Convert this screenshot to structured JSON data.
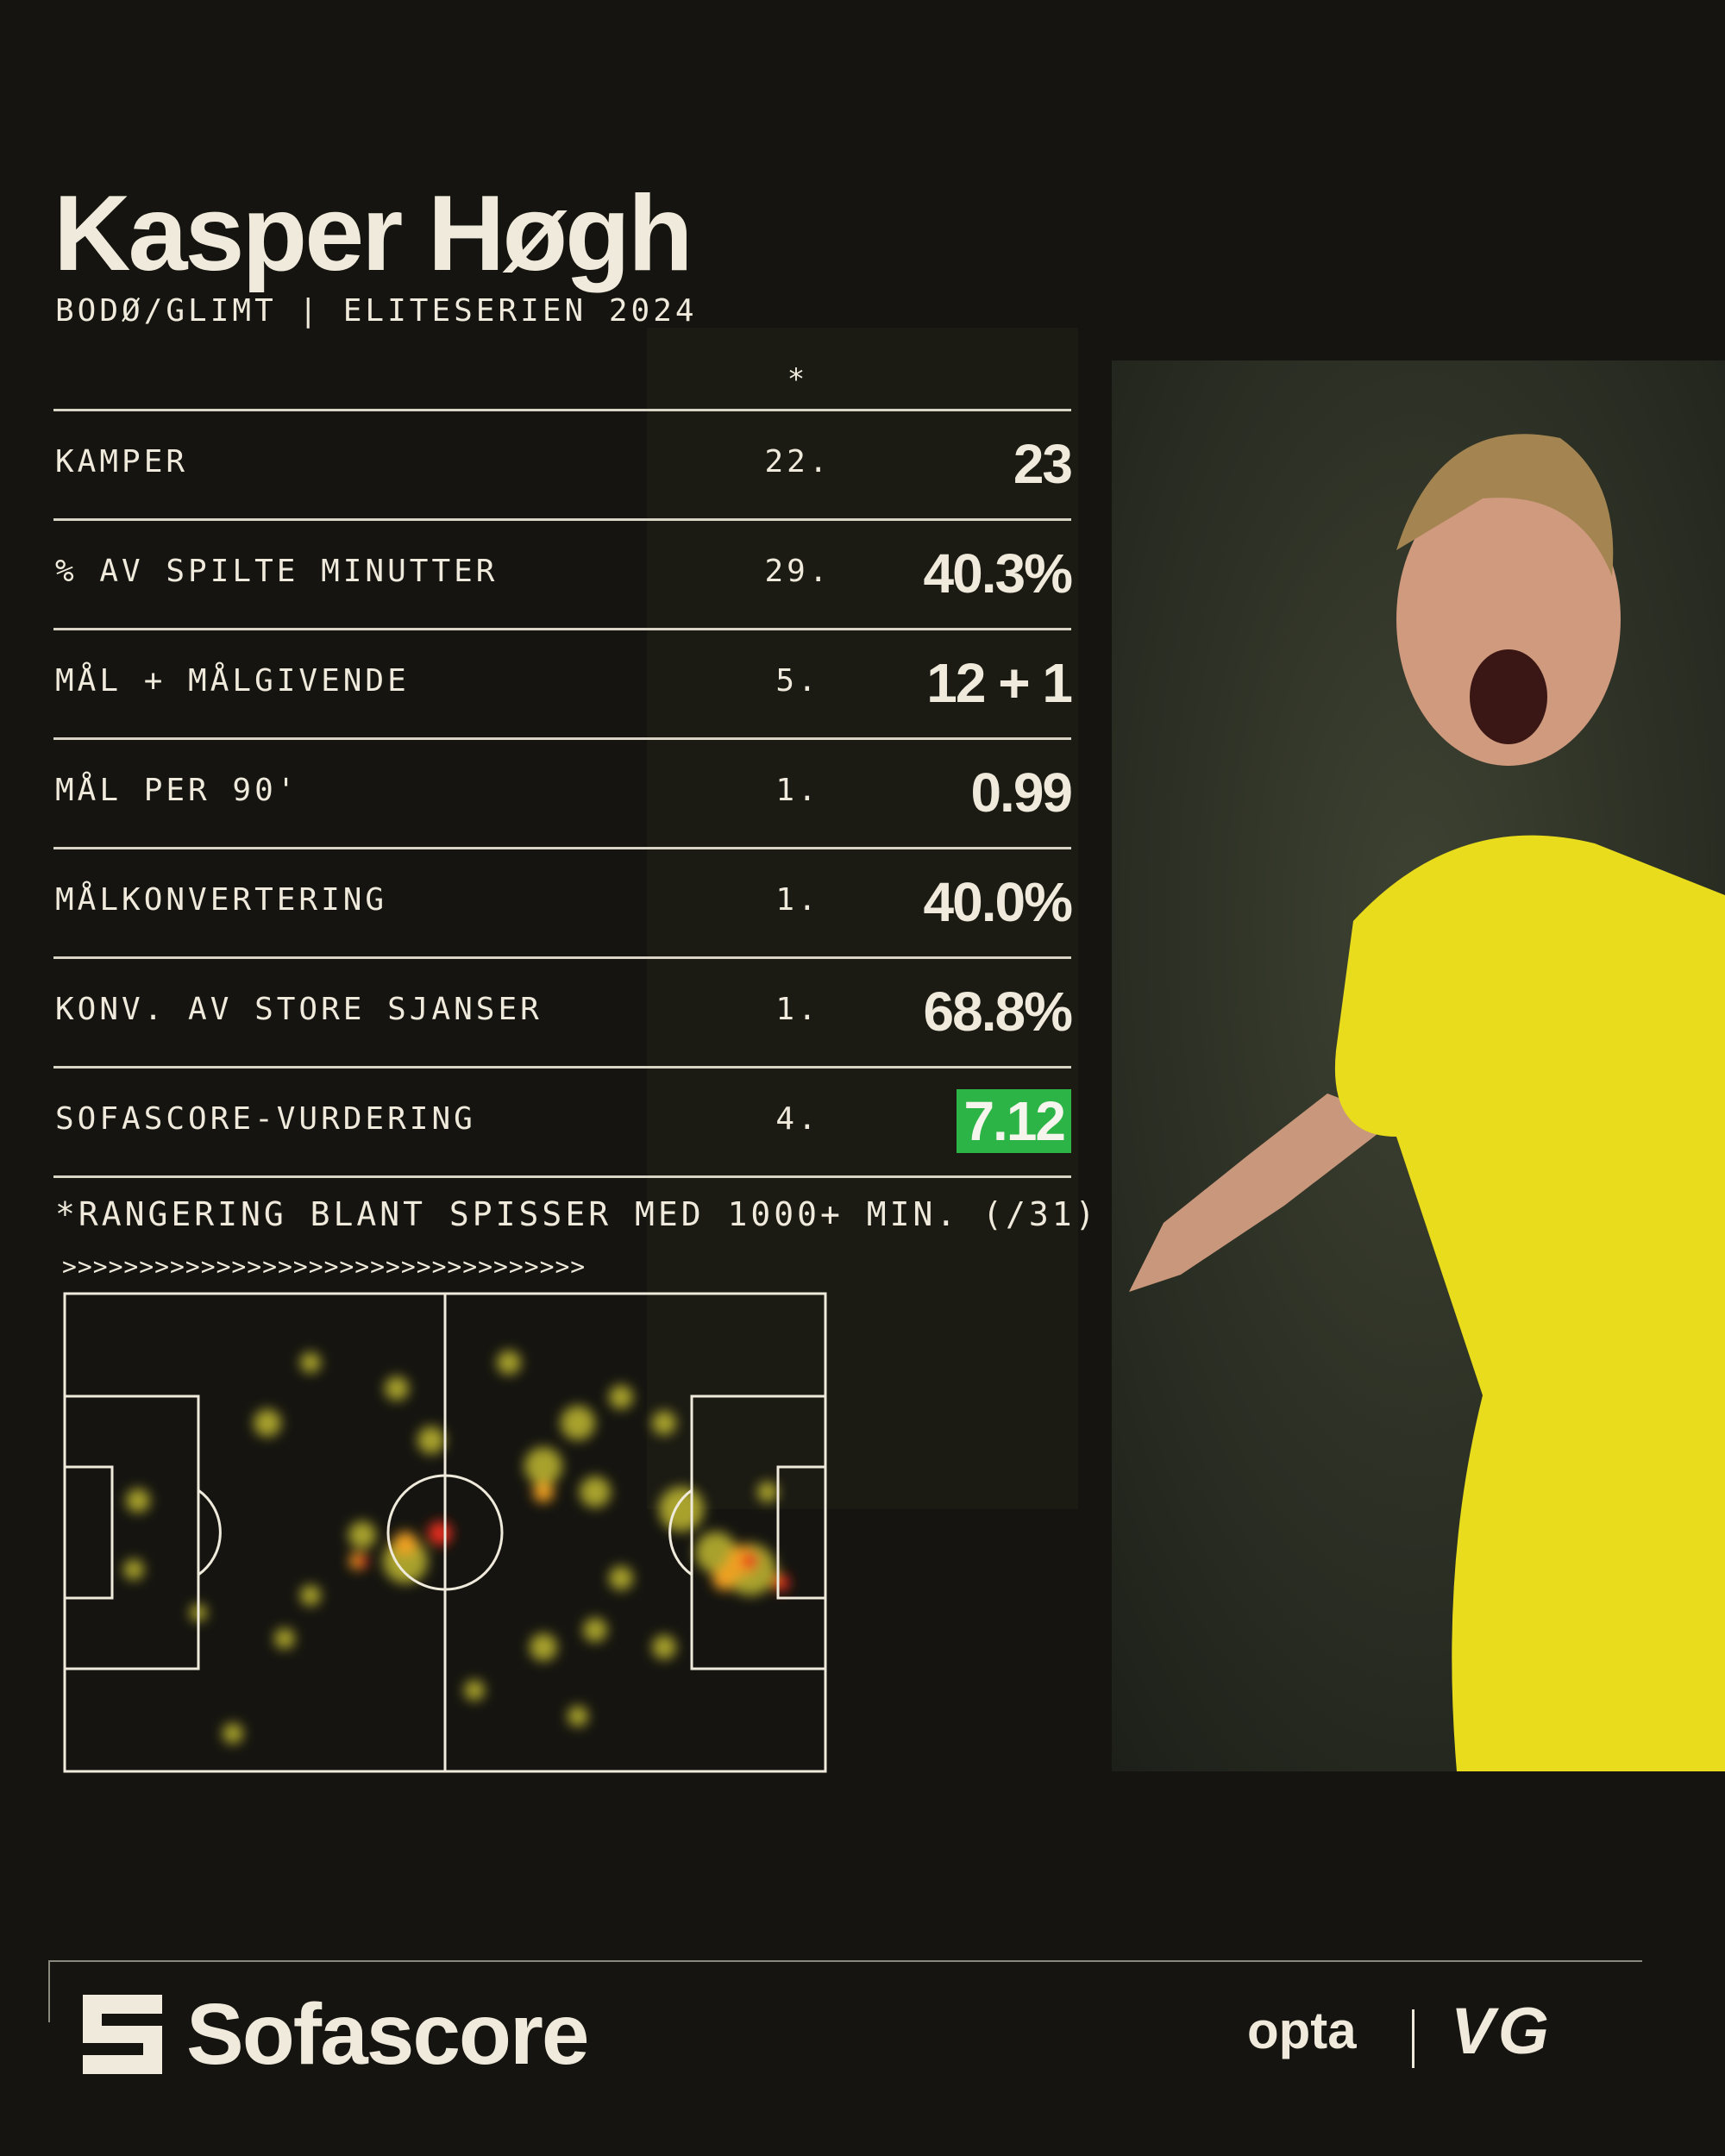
{
  "header": {
    "title": "Kasper Høgh",
    "subtitle": "BODØ/GLIMT | ELITESERIEN 2024"
  },
  "table": {
    "rank_header": "*",
    "rows": [
      {
        "label": "KAMPER",
        "rank": "22.",
        "value": "23"
      },
      {
        "label": "% AV SPILTE MINUTTER",
        "rank": "29.",
        "value": "40.3%"
      },
      {
        "label": "MÅL + MÅLGIVENDE",
        "rank": "5.",
        "value": "12 + 1"
      },
      {
        "label": "MÅL PER 90'",
        "rank": "1.",
        "value": "0.99"
      },
      {
        "label": "MÅLKONVERTERING",
        "rank": "1.",
        "value": "40.0%"
      },
      {
        "label": "KONV. AV STORE SJANSER",
        "rank": "1.",
        "value": "68.8%"
      },
      {
        "label": "SOFASCORE-VURDERING",
        "rank": "4.",
        "value": "7.12",
        "highlight": true
      }
    ],
    "footnote": "*RANGERING BLANT SPISSER MED 1000+ MIN. (/31)"
  },
  "heatmap": {
    "direction": ">>>>>>>>>>>>>>>>>>>>>>>>>>>>>>>>>>"
  },
  "footer": {
    "brand": "Sofascore",
    "partners": [
      "opta",
      "VG"
    ]
  }
}
